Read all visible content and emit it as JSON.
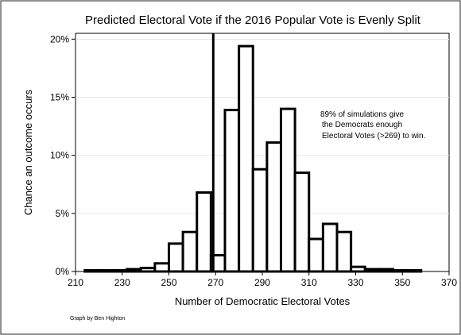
{
  "chart_data": {
    "type": "bar",
    "title": "Predicted Electoral Vote if the 2016 Popular Vote is Evenly Split",
    "xlabel": "Number of Democratic Electoral Votes",
    "ylabel": "Chance an outcome occurs",
    "xlim": [
      210,
      370
    ],
    "ylim": [
      0,
      20.5
    ],
    "xticks": [
      "210",
      "230",
      "250",
      "270",
      "290",
      "310",
      "330",
      "350",
      "370"
    ],
    "yticks": [
      "0%",
      "5%",
      "10%",
      "15%",
      "20%"
    ],
    "grid": true,
    "bin_width": 6,
    "bins_start": [
      214,
      220,
      226,
      232,
      238,
      244,
      250,
      256,
      262,
      268,
      274,
      280,
      286,
      292,
      298,
      304,
      310,
      316,
      322,
      328,
      334,
      340,
      346,
      352
    ],
    "values": [
      0.1,
      0.1,
      0.1,
      0.2,
      0.3,
      0.7,
      2.4,
      3.4,
      6.8,
      1.4,
      13.9,
      19.4,
      8.8,
      11.1,
      14.0,
      8.5,
      2.8,
      4.1,
      3.4,
      0.4,
      0.2,
      0.2,
      0.1,
      0.1
    ],
    "threshold_x": 269,
    "annotation": [
      "89% of simulations give",
      "the Democrats enough",
      "Electoral Votes (>269) to win."
    ],
    "note": "Graph by Ben Highton"
  }
}
